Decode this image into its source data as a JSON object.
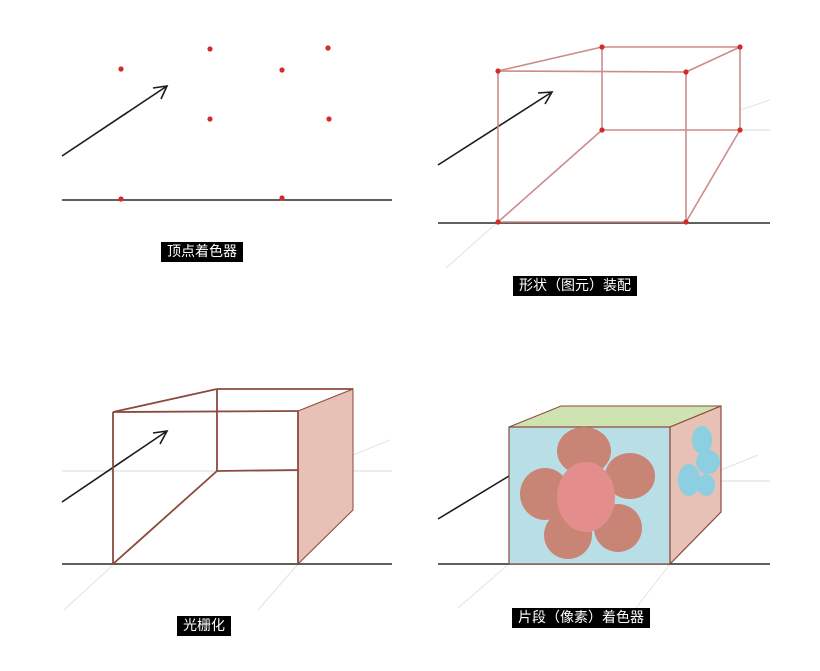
{
  "panels": [
    {
      "id": "vertex-shader",
      "caption": "顶点着色器"
    },
    {
      "id": "primitive-assembly",
      "caption": "形状（图元）装配"
    },
    {
      "id": "rasterization",
      "caption": "光栅化"
    },
    {
      "id": "fragment-shader",
      "caption": "片段（像素）着色器"
    }
  ],
  "colors": {
    "ground": "#2b2b2b",
    "faint": "#d9d9d9",
    "arrow": "#1a1a1a",
    "vertex": "#d12b2b",
    "wire_pink": "#cf8a8a",
    "edge_brown": "#8a4a3e",
    "side_face": "#e7c0b6",
    "front_blue": "#b9dfe6",
    "top_green": "#cfe3b0",
    "petal": "#c88474",
    "center": "#e38e8c",
    "right_shape": "#8ccfe0"
  }
}
